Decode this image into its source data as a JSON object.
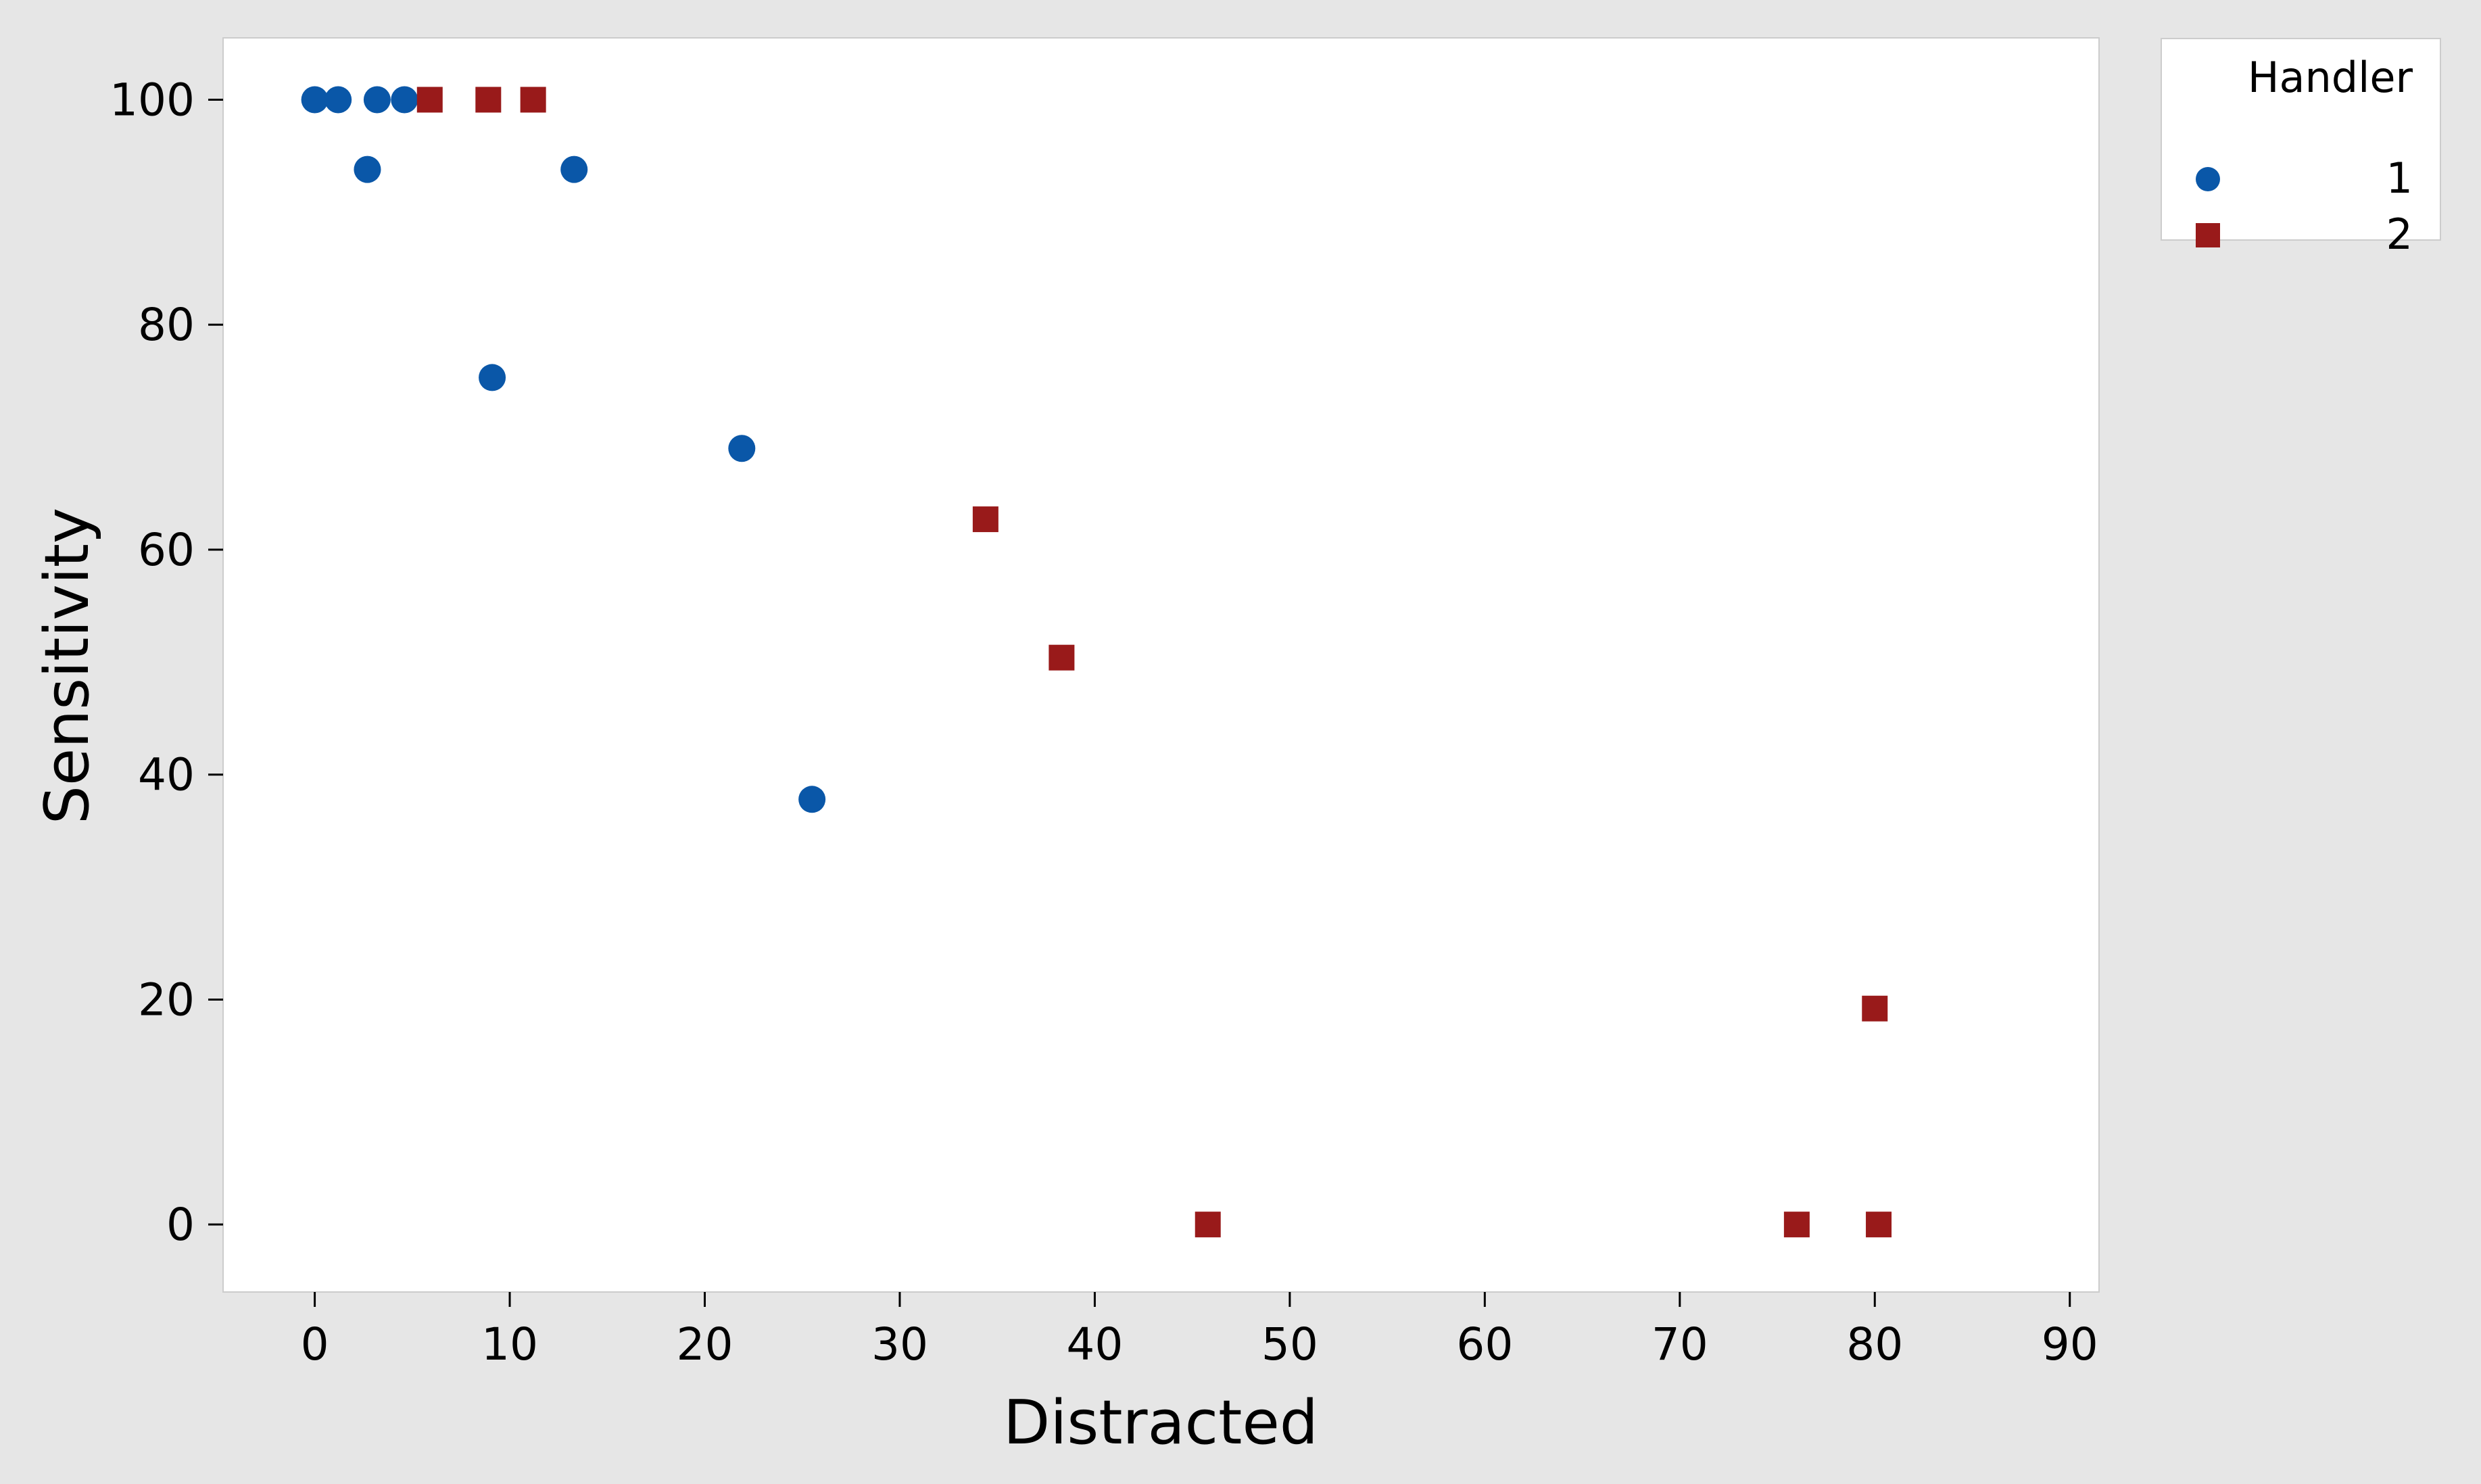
{
  "chart_data": {
    "type": "scatter",
    "title": "",
    "xlabel": "Distracted",
    "ylabel": "Sensitivity",
    "xlim": [
      -4.7,
      91.5
    ],
    "ylim": [
      -6,
      105.5
    ],
    "x_ticks": [
      0,
      10,
      20,
      30,
      40,
      50,
      60,
      70,
      80,
      90
    ],
    "y_ticks": [
      0,
      20,
      40,
      60,
      80,
      100
    ],
    "grid": false,
    "legend": {
      "title": "Handler",
      "position": "top-right, outside plot"
    },
    "series": [
      {
        "name": "1",
        "color": "#0a57a8",
        "marker": "circle",
        "points": [
          [
            0,
            100
          ],
          [
            1.2,
            100
          ],
          [
            3.2,
            100
          ],
          [
            4.6,
            100
          ],
          [
            2.7,
            93.8
          ],
          [
            13.3,
            93.8
          ],
          [
            9.1,
            75.3
          ],
          [
            21.9,
            69.0
          ],
          [
            25.5,
            37.8
          ]
        ]
      },
      {
        "name": "2",
        "color": "#991a1a",
        "marker": "square",
        "points": [
          [
            5.9,
            100
          ],
          [
            8.9,
            100
          ],
          [
            11.2,
            100
          ],
          [
            34.4,
            62.7
          ],
          [
            38.3,
            50.4
          ],
          [
            45.8,
            0
          ],
          [
            76.0,
            0
          ],
          [
            80.2,
            0
          ],
          [
            80.0,
            19.2
          ]
        ]
      }
    ]
  }
}
